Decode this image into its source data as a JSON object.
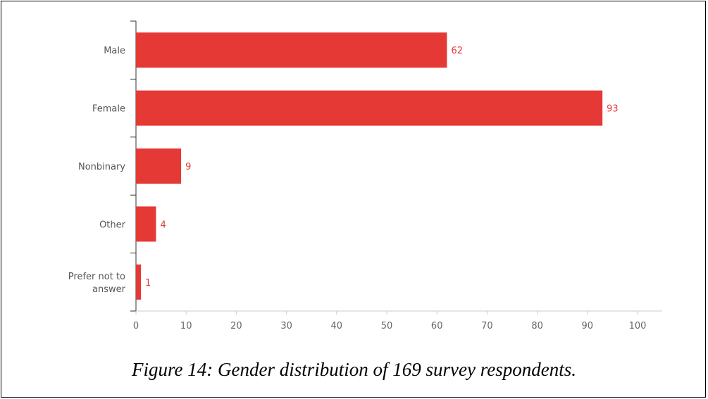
{
  "caption": "Figure 14: Gender distribution of 169 survey respondents.",
  "chart_data": {
    "type": "bar",
    "orientation": "horizontal",
    "categories": [
      "Male",
      "Female",
      "Nonbinary",
      "Other",
      "Prefer not to answer"
    ],
    "category_label_lines": [
      [
        "Male"
      ],
      [
        "Female"
      ],
      [
        "Nonbinary"
      ],
      [
        "Other"
      ],
      [
        "Prefer not to",
        "answer"
      ]
    ],
    "values": [
      62,
      93,
      9,
      4,
      1
    ],
    "xlim": [
      0,
      105
    ],
    "xticks": [
      0,
      10,
      20,
      30,
      40,
      50,
      60,
      70,
      80,
      90,
      100
    ],
    "data_labels": true,
    "bar_color": "#e53935",
    "grid": false
  }
}
